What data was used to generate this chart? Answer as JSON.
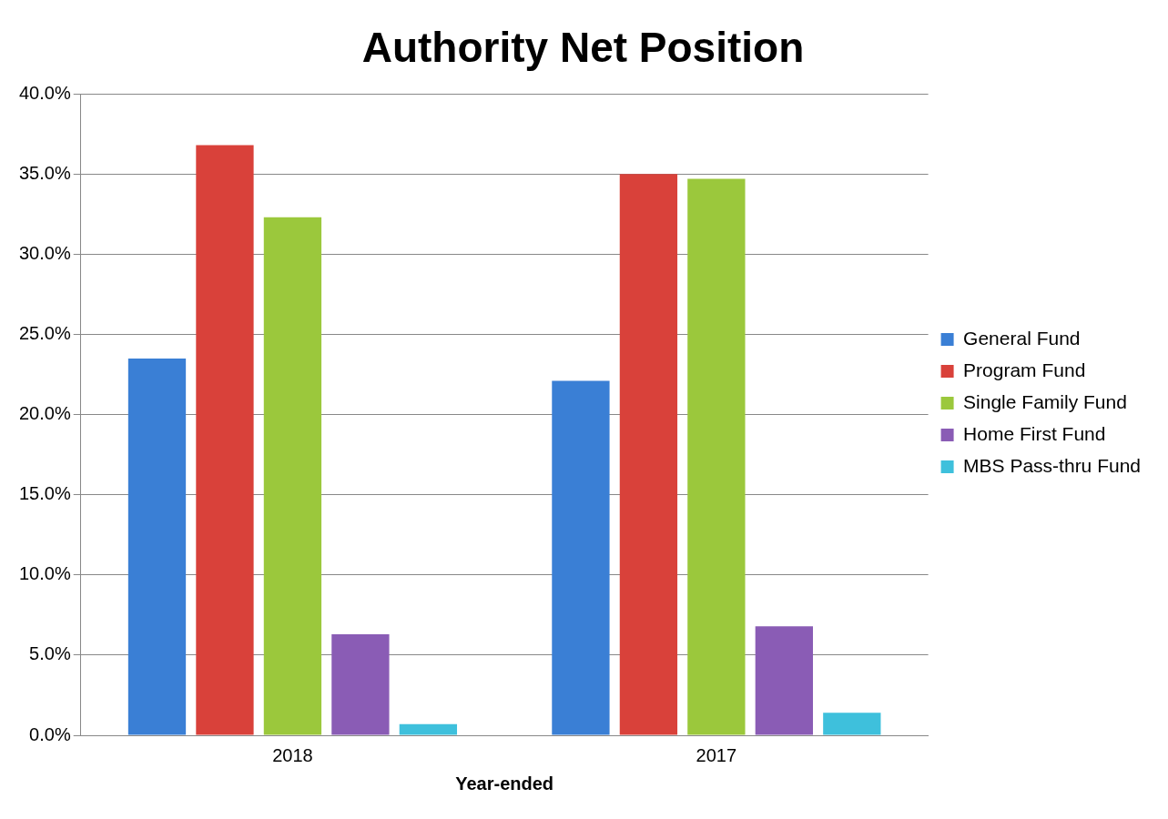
{
  "chart_data": {
    "type": "bar",
    "title": "Authority Net Position",
    "xlabel": "Year-ended",
    "categories": [
      "2018",
      "2017"
    ],
    "series": [
      {
        "name": "General Fund",
        "color": "#3a7fd5",
        "values": [
          23.5,
          22.1
        ]
      },
      {
        "name": "Program Fund",
        "color": "#d9413a",
        "values": [
          36.8,
          35.0
        ]
      },
      {
        "name": "Single Family Fund",
        "color": "#9bc83c",
        "values": [
          32.3,
          34.7
        ]
      },
      {
        "name": "Home First Fund",
        "color": "#8a5cb5",
        "values": [
          6.3,
          6.8
        ]
      },
      {
        "name": "MBS Pass-thru Fund",
        "color": "#3ec0dc",
        "values": [
          0.7,
          1.4
        ]
      }
    ],
    "ylim": [
      0,
      40
    ],
    "yticks": [
      {
        "value": 0,
        "label": "0.0%"
      },
      {
        "value": 5,
        "label": "5.0%"
      },
      {
        "value": 10,
        "label": "10.0%"
      },
      {
        "value": 15,
        "label": "15.0%"
      },
      {
        "value": 20,
        "label": "20.0%"
      },
      {
        "value": 25,
        "label": "25.0%"
      },
      {
        "value": 30,
        "label": "30.0%"
      },
      {
        "value": 35,
        "label": "35.0%"
      },
      {
        "value": 40,
        "label": "40.0%"
      }
    ],
    "grid": "y",
    "legend": "right"
  }
}
